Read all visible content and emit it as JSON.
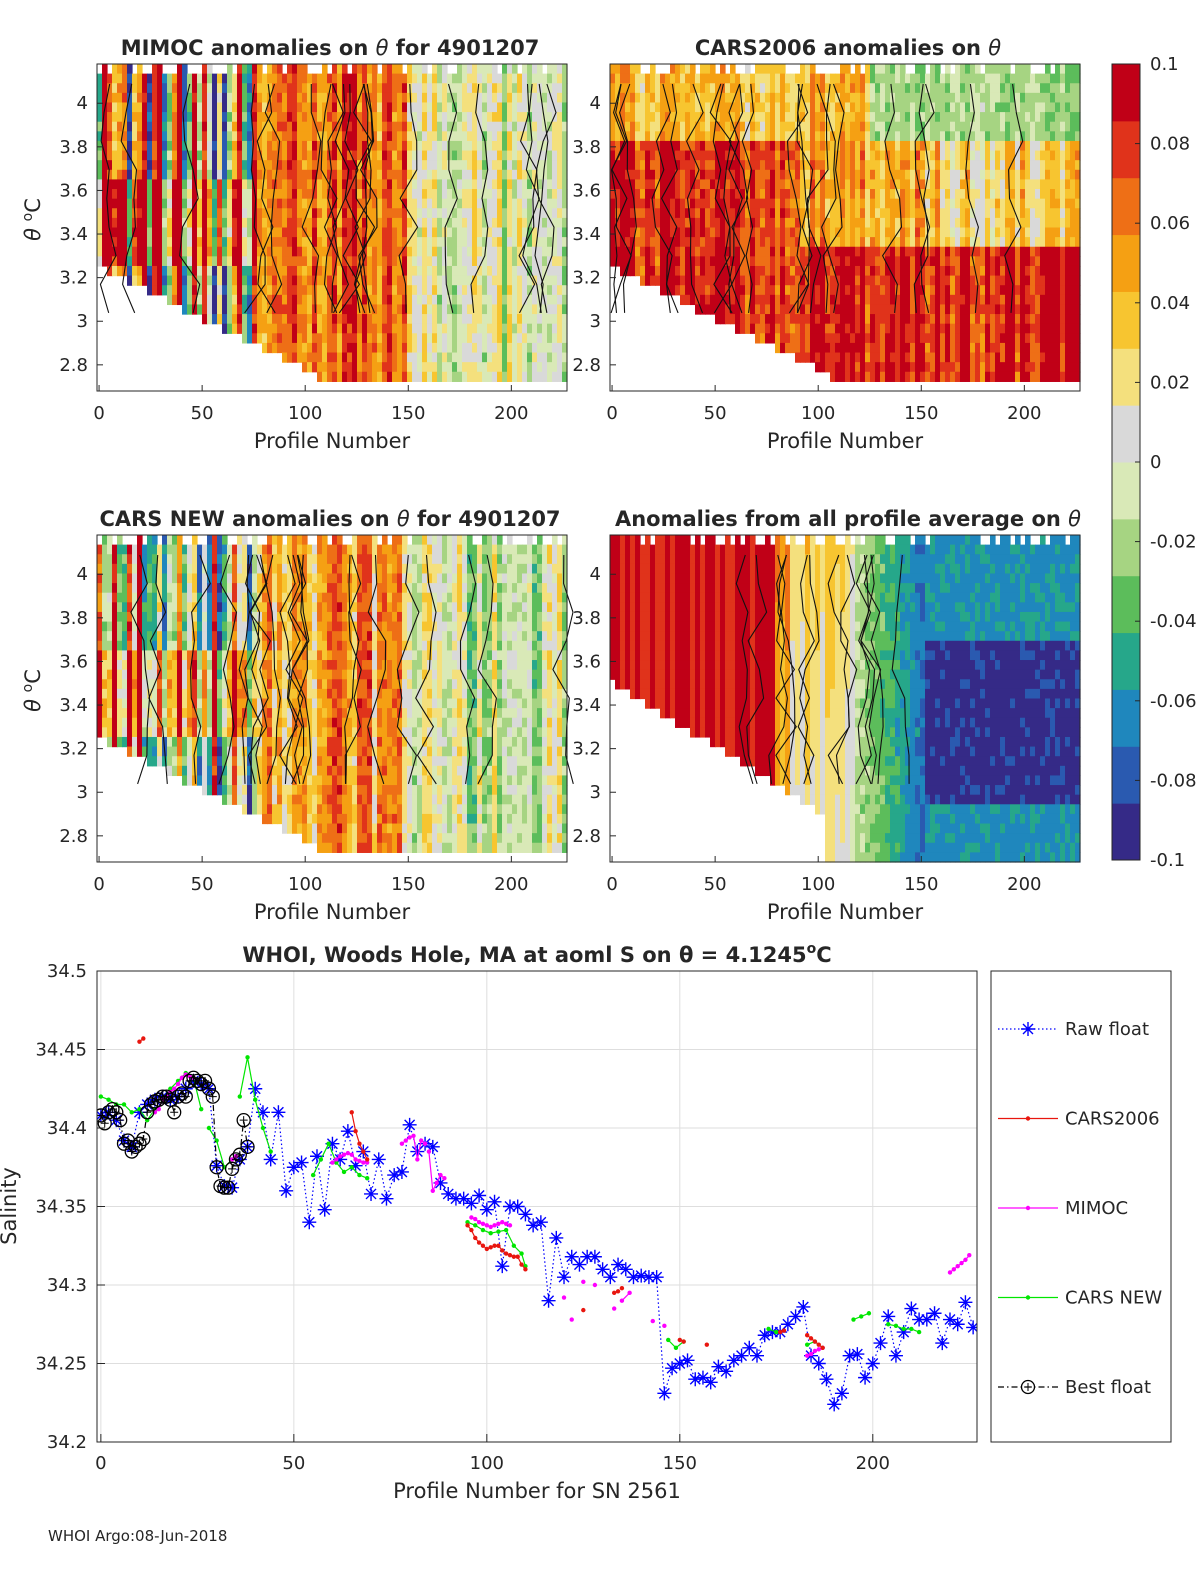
{
  "footer": "WHOI Argo:08-Jun-2018",
  "colorbar": {
    "min": -0.1,
    "max": 0.1,
    "tick_values": [
      0.1,
      0.08,
      0.06,
      0.04,
      0.02,
      0,
      -0.02,
      -0.04,
      -0.06,
      -0.08,
      -0.1
    ],
    "tick_labels": [
      "0.1",
      "0.08",
      "0.06",
      "0.04",
      "0.02",
      "0",
      "-0.02",
      "-0.04",
      "-0.06",
      "-0.08",
      "-0.1"
    ],
    "colors": [
      "#352a87",
      "#2a5ab0",
      "#1f87bd",
      "#26a78a",
      "#5cbd5b",
      "#a6d482",
      "#d9e9b7",
      "#d9d9d9",
      "#f4e07d",
      "#f7c530",
      "#f5a013",
      "#ee6f16",
      "#e0331b",
      "#c00017"
    ]
  },
  "panels": [
    {
      "title": "MIMOC anomalies on θ  for 4901207",
      "xlabel": "Profile Number",
      "ylabel": "θ °C",
      "ylabel_theta": "θ",
      "ylabel_super": "o",
      "ylabel_unit": "C",
      "show_ylabel": true,
      "x_ticks": [
        0,
        50,
        100,
        150,
        200
      ],
      "y_ticks": [
        "4",
        "3.8",
        "3.6",
        "3.4",
        "3.2",
        "3",
        "2.8"
      ],
      "xlim": [
        -1,
        227
      ],
      "ylim": [
        2.68,
        4.18
      ]
    },
    {
      "title": "CARS2006 anomalies on θ",
      "xlabel": "Profile Number",
      "ylabel": "",
      "show_ylabel": false,
      "x_ticks": [
        0,
        50,
        100,
        150,
        200
      ],
      "y_ticks": [
        "4",
        "3.8",
        "3.6",
        "3.4",
        "3.2",
        "3",
        "2.8"
      ],
      "xlim": [
        -1,
        227
      ],
      "ylim": [
        2.68,
        4.18
      ]
    },
    {
      "title": "CARS NEW anomalies on θ for 4901207",
      "xlabel": "Profile Number",
      "ylabel": "θ °C",
      "ylabel_theta": "θ",
      "ylabel_super": "o",
      "ylabel_unit": "C",
      "show_ylabel": true,
      "x_ticks": [
        0,
        50,
        100,
        150,
        200
      ],
      "y_ticks": [
        "4",
        "3.8",
        "3.6",
        "3.4",
        "3.2",
        "3",
        "2.8"
      ],
      "xlim": [
        -1,
        227
      ],
      "ylim": [
        2.68,
        4.18
      ]
    },
    {
      "title": "Anomalies from all profile average on θ",
      "xlabel": "Profile Number",
      "ylabel": "",
      "show_ylabel": false,
      "x_ticks": [
        0,
        50,
        100,
        150,
        200
      ],
      "y_ticks": [
        "4",
        "3.8",
        "3.6",
        "3.4",
        "3.2",
        "3",
        "2.8"
      ],
      "xlim": [
        -1,
        227
      ],
      "ylim": [
        2.68,
        4.18
      ]
    }
  ],
  "chart_data": {
    "type": "line",
    "title": "WHOI, Woods Hole, MA at aoml S on θ = 4.1245°C",
    "title_main": "WHOI, Woods Hole, MA at aoml S on θ = 4.1245",
    "title_super": "o",
    "title_unit": "C",
    "xlabel": "Profile Number for SN 2561",
    "ylabel": "Salinity",
    "xlim": [
      -1,
      227
    ],
    "ylim": [
      34.2,
      34.5
    ],
    "x_ticks": [
      0,
      50,
      100,
      150,
      200
    ],
    "y_ticks": [
      34.2,
      34.25,
      34.3,
      34.35,
      34.4,
      34.45,
      34.5
    ],
    "y_tick_labels": [
      "34.2",
      "34.25",
      "34.3",
      "34.35",
      "34.4",
      "34.45",
      "34.5"
    ],
    "grid": true,
    "legend": {
      "location": "outside-right",
      "entries": [
        "Raw float",
        "CARS2006",
        "MIMOC",
        "CARS NEW",
        "Best float"
      ]
    },
    "series": [
      {
        "name": "Raw float",
        "color": "#0000ff",
        "x": [
          0,
          2,
          4,
          6,
          8,
          10,
          12,
          14,
          16,
          18,
          20,
          22,
          24,
          26,
          28,
          30,
          32,
          34,
          36,
          38,
          40,
          42,
          44,
          46,
          48,
          50,
          52,
          54,
          56,
          58,
          60,
          62,
          64,
          66,
          68,
          70,
          72,
          74,
          76,
          78,
          80,
          82,
          84,
          86,
          88,
          90,
          92,
          94,
          96,
          98,
          100,
          102,
          104,
          106,
          108,
          110,
          112,
          114,
          116,
          118,
          120,
          122,
          124,
          126,
          128,
          130,
          132,
          134,
          136,
          138,
          140,
          142,
          144,
          146,
          148,
          150,
          152,
          154,
          156,
          158,
          160,
          162,
          164,
          166,
          168,
          170,
          172,
          174,
          176,
          178,
          180,
          182,
          184,
          186,
          188,
          190,
          192,
          194,
          196,
          198,
          200,
          202,
          204,
          206,
          208,
          210,
          212,
          214,
          216,
          218,
          220,
          222,
          224,
          226
        ],
        "y": [
          34.408,
          34.41,
          34.405,
          34.392,
          34.388,
          34.41,
          34.415,
          34.418,
          34.42,
          34.418,
          34.42,
          34.425,
          34.43,
          34.428,
          34.425,
          34.376,
          34.363,
          34.362,
          34.38,
          34.388,
          34.425,
          34.41,
          34.38,
          34.41,
          34.36,
          34.375,
          34.378,
          34.34,
          34.382,
          34.348,
          34.39,
          34.38,
          34.398,
          34.376,
          34.385,
          34.358,
          34.38,
          34.355,
          34.37,
          34.372,
          34.402,
          34.385,
          34.39,
          34.388,
          34.365,
          34.358,
          34.355,
          34.355,
          34.352,
          34.357,
          34.348,
          34.353,
          34.312,
          34.35,
          34.35,
          34.345,
          34.338,
          34.34,
          34.29,
          34.33,
          34.305,
          34.318,
          34.313,
          34.318,
          34.318,
          34.31,
          34.305,
          34.313,
          34.31,
          34.305,
          34.306,
          34.305,
          34.305,
          34.231,
          34.247,
          34.25,
          34.252,
          34.24,
          34.241,
          34.238,
          34.248,
          34.245,
          34.252,
          34.255,
          34.26,
          34.255,
          34.268,
          34.27,
          34.27,
          34.275,
          34.28,
          34.286,
          34.255,
          34.25,
          34.24,
          34.224,
          34.231,
          34.255,
          34.256,
          34.241,
          34.25,
          34.263,
          34.28,
          34.255,
          34.27,
          34.285,
          34.278,
          34.278,
          34.282,
          34.263,
          34.278,
          34.275,
          34.289,
          34.273
        ]
      },
      {
        "name": "CARS2006",
        "color": "#e8160f",
        "x": [
          10,
          11,
          65,
          66,
          67,
          68,
          69,
          95,
          96,
          97,
          98,
          99,
          100,
          101,
          102,
          103,
          104,
          105,
          106,
          107,
          108,
          109,
          110,
          125,
          133,
          134,
          135,
          150,
          151,
          157,
          176,
          177,
          183,
          184,
          185,
          186,
          187
        ],
        "y": [
          34.455,
          34.457,
          34.41,
          34.398,
          34.39,
          34.385,
          34.38,
          34.338,
          34.335,
          34.33,
          34.327,
          34.325,
          34.323,
          34.324,
          34.325,
          34.325,
          34.322,
          34.32,
          34.319,
          34.318,
          34.318,
          34.313,
          34.31,
          34.284,
          34.295,
          34.296,
          34.298,
          34.265,
          34.264,
          34.262,
          34.27,
          34.271,
          34.268,
          34.266,
          34.264,
          34.262,
          34.26
        ],
        "segments": [
          [
            0,
            2
          ],
          [
            2,
            7
          ],
          [
            7,
            23
          ],
          [
            24,
            26
          ],
          [
            27,
            29
          ],
          [
            30,
            32
          ],
          [
            32,
            37
          ]
        ]
      },
      {
        "name": "MIMOC",
        "color": "#ff00ff",
        "x": [
          14,
          15,
          16,
          17,
          18,
          19,
          20,
          21,
          22,
          23,
          24,
          34,
          35,
          60,
          61,
          62,
          63,
          64,
          65,
          66,
          67,
          68,
          69,
          78,
          79,
          80,
          81,
          82,
          83,
          84,
          85,
          86,
          87,
          88,
          89,
          96,
          97,
          98,
          99,
          100,
          101,
          102,
          103,
          104,
          105,
          106,
          120,
          122,
          125,
          128,
          133,
          135,
          137,
          143,
          146,
          183,
          184,
          185,
          186,
          187,
          220,
          221,
          222,
          223,
          224,
          225
        ],
        "y": [
          34.41,
          34.412,
          34.418,
          34.42,
          34.423,
          34.425,
          34.428,
          34.432,
          34.434,
          34.433,
          34.432,
          34.38,
          34.382,
          34.378,
          34.38,
          34.382,
          34.383,
          34.384,
          34.383,
          34.38,
          34.379,
          34.378,
          34.378,
          34.39,
          34.392,
          34.394,
          34.395,
          34.38,
          34.392,
          34.39,
          34.385,
          34.36,
          34.365,
          34.37,
          34.368,
          34.343,
          34.342,
          34.34,
          34.339,
          34.338,
          34.337,
          34.338,
          34.339,
          34.34,
          34.339,
          34.338,
          34.292,
          34.278,
          34.302,
          34.3,
          34.285,
          34.29,
          34.295,
          34.277,
          34.274,
          34.255,
          34.256,
          34.258,
          34.259,
          34.26,
          34.308,
          34.31,
          34.312,
          34.314,
          34.316,
          34.319
        ],
        "segments": [
          [
            0,
            11
          ],
          [
            11,
            13
          ],
          [
            13,
            23
          ],
          [
            23,
            30
          ],
          [
            30,
            35
          ],
          [
            35,
            46
          ],
          [
            51,
            53
          ],
          [
            55,
            60
          ],
          [
            60,
            66
          ]
        ]
      },
      {
        "name": "CARS NEW",
        "color": "#00e600",
        "x": [
          0,
          2,
          4,
          6,
          8,
          10,
          12,
          14,
          16,
          18,
          20,
          22,
          24,
          26,
          28,
          30,
          32,
          34,
          36,
          38,
          40,
          42,
          44,
          55,
          57,
          59,
          61,
          63,
          65,
          67,
          69,
          95,
          97,
          99,
          101,
          103,
          105,
          107,
          109,
          110,
          147,
          149,
          151,
          173,
          175,
          183,
          185,
          187,
          195,
          197,
          199,
          204,
          206,
          208,
          210,
          212
        ],
        "y": [
          34.42,
          34.418,
          34.415,
          34.415,
          34.41,
          34.412,
          34.405,
          34.412,
          34.418,
          34.425,
          34.43,
          34.435,
          34.432,
          34.412,
          34.4,
          34.392,
          34.375,
          34.38,
          34.42,
          34.445,
          34.418,
          34.4,
          34.385,
          34.37,
          34.38,
          34.39,
          34.378,
          34.372,
          34.375,
          34.37,
          34.368,
          34.34,
          34.338,
          34.335,
          34.333,
          34.334,
          34.335,
          34.325,
          34.32,
          34.312,
          34.265,
          34.26,
          34.264,
          34.272,
          34.27,
          34.262,
          34.264,
          34.26,
          34.278,
          34.28,
          34.282,
          34.275,
          34.274,
          34.272,
          34.272,
          34.27
        ],
        "segments": [
          [
            0,
            8
          ],
          [
            8,
            14
          ],
          [
            14,
            18
          ],
          [
            18,
            23
          ],
          [
            23,
            31
          ],
          [
            31,
            40
          ],
          [
            40,
            43
          ],
          [
            43,
            45
          ],
          [
            45,
            48
          ],
          [
            48,
            51
          ],
          [
            51,
            56
          ]
        ]
      },
      {
        "name": "Best float",
        "color": "#000000",
        "x": [
          0,
          1,
          2,
          3,
          4,
          5,
          6,
          7,
          8,
          9,
          10,
          11,
          12,
          13,
          14,
          15,
          16,
          17,
          18,
          19,
          20,
          21,
          22,
          23,
          24,
          25,
          26,
          27,
          28,
          29,
          30,
          31,
          32,
          33,
          34,
          35,
          36,
          37,
          38
        ],
        "y": [
          34.408,
          34.403,
          34.41,
          34.412,
          34.41,
          34.405,
          34.39,
          34.392,
          34.385,
          34.388,
          34.39,
          34.393,
          34.41,
          34.415,
          34.417,
          34.418,
          34.42,
          34.42,
          34.418,
          34.41,
          34.42,
          34.422,
          34.42,
          34.43,
          34.432,
          34.43,
          34.428,
          34.43,
          34.425,
          34.42,
          34.375,
          34.363,
          34.362,
          34.362,
          34.374,
          34.38,
          34.383,
          34.405,
          34.388
        ]
      }
    ]
  }
}
